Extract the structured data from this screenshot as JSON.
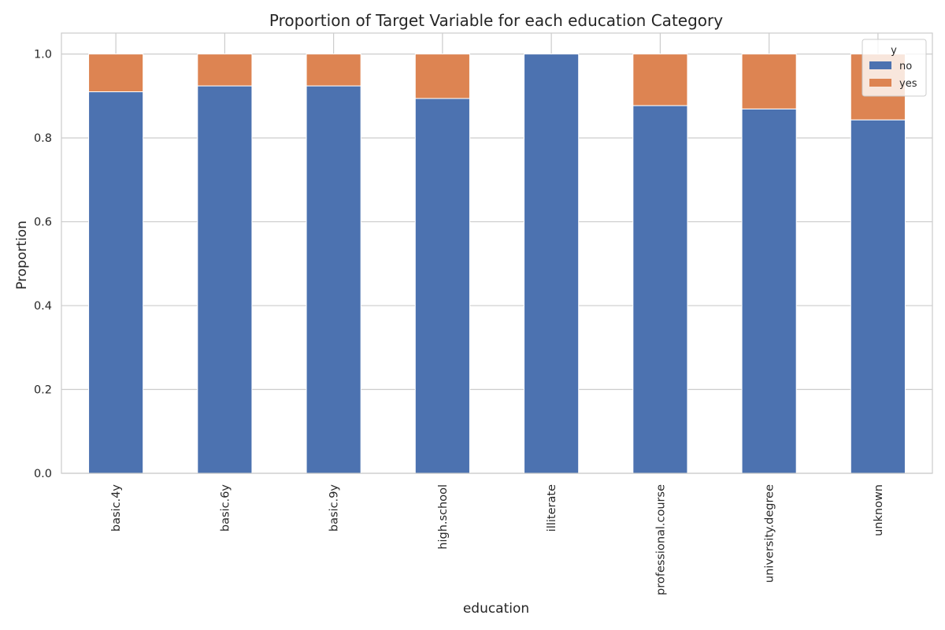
{
  "chart_data": {
    "type": "bar",
    "stacked": true,
    "title": "Proportion of Target Variable for each education Category",
    "xlabel": "education",
    "ylabel": "Proportion",
    "categories": [
      "basic.4y",
      "basic.6y",
      "basic.9y",
      "high.school",
      "illiterate",
      "professional.course",
      "university.degree",
      "unknown"
    ],
    "series": [
      {
        "name": "no",
        "color": "#4c72b0",
        "values": [
          0.91,
          0.924,
          0.924,
          0.894,
          1.0,
          0.877,
          0.869,
          0.843
        ]
      },
      {
        "name": "yes",
        "color": "#dd8452",
        "values": [
          0.09,
          0.076,
          0.076,
          0.106,
          0.0,
          0.123,
          0.131,
          0.157
        ]
      }
    ],
    "ylim": [
      0,
      1.05
    ],
    "yticks": [
      0.0,
      0.2,
      0.4,
      0.6,
      0.8,
      1.0
    ],
    "ytick_labels": [
      "0.0",
      "0.2",
      "0.4",
      "0.6",
      "0.8",
      "1.0"
    ],
    "grid": true,
    "legend": {
      "title": "y",
      "placement": "top-right"
    }
  },
  "colors": {
    "grid": "#cccccc",
    "frame": "#cccccc",
    "text": "#262626",
    "bar_edge": "#ffffff"
  }
}
